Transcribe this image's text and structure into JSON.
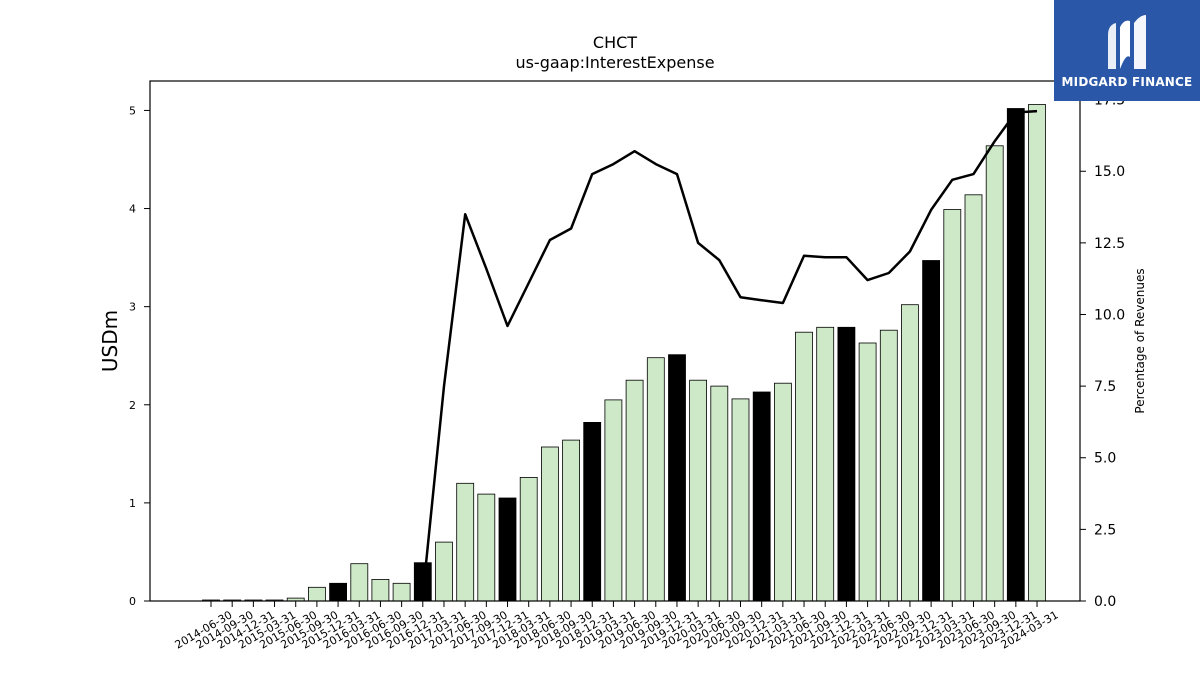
{
  "chart_data": {
    "type": "bar",
    "title": "CHCT",
    "subtitle": "us-gaap:InterestExpense",
    "ylabel": "USDm",
    "y2label": "Percentage of Revenues",
    "ylim": [
      0,
      5.3
    ],
    "y2lim": [
      0,
      18.15
    ],
    "yticks": [
      0,
      1,
      2,
      3,
      4,
      5
    ],
    "y2ticks": [
      "0.0",
      "2.5",
      "5.0",
      "7.5",
      "10.0",
      "12.5",
      "15.0",
      "17.5"
    ],
    "categories": [
      "2014-06-30",
      "2014-09-30",
      "2014-12-31",
      "2015-03-31",
      "2015-06-30",
      "2015-09-30",
      "2015-12-31",
      "2016-03-31",
      "2016-06-30",
      "2016-09-30",
      "2016-12-31",
      "2017-03-31",
      "2017-06-30",
      "2017-09-30",
      "2017-12-31",
      "2018-03-31",
      "2018-06-30",
      "2018-09-30",
      "2018-12-31",
      "2019-03-31",
      "2019-06-30",
      "2019-09-30",
      "2019-12-31",
      "2020-03-31",
      "2020-06-30",
      "2020-09-30",
      "2020-12-31",
      "2021-03-31",
      "2021-06-30",
      "2021-09-30",
      "2021-12-31",
      "2022-03-31",
      "2022-06-30",
      "2022-09-30",
      "2022-12-31",
      "2023-03-31",
      "2023-06-30",
      "2023-09-30",
      "2023-12-31",
      "2024-03-31"
    ],
    "series": [
      {
        "type": "bar",
        "values": [
          0.01,
          0.01,
          0.01,
          0.01,
          0.03,
          0.14,
          0.18,
          0.38,
          0.22,
          0.18,
          0.39,
          0.6,
          1.2,
          1.09,
          1.05,
          1.26,
          1.57,
          1.64,
          1.82,
          2.05,
          2.25,
          2.48,
          2.51,
          2.25,
          2.19,
          2.06,
          2.13,
          2.22,
          2.74,
          2.79,
          2.79,
          2.63,
          2.76,
          3.02,
          3.47,
          3.99,
          4.14,
          4.64,
          5.02,
          5.06
        ],
        "highlight": [
          false,
          false,
          false,
          false,
          false,
          false,
          true,
          false,
          false,
          false,
          true,
          false,
          false,
          false,
          true,
          false,
          false,
          false,
          true,
          false,
          false,
          false,
          true,
          false,
          false,
          false,
          true,
          false,
          false,
          false,
          true,
          false,
          false,
          false,
          true,
          false,
          false,
          false,
          true,
          false
        ]
      },
      {
        "type": "line",
        "axis": "right",
        "values": [
          null,
          null,
          null,
          null,
          null,
          null,
          null,
          null,
          null,
          null,
          0.2,
          7.5,
          13.5,
          11.6,
          9.6,
          11.1,
          12.6,
          13.0,
          14.9,
          15.25,
          15.7,
          15.25,
          14.9,
          12.5,
          11.9,
          10.6,
          10.5,
          10.4,
          12.05,
          12.0,
          12.0,
          11.2,
          11.45,
          12.2,
          13.65,
          14.7,
          14.9,
          16.05,
          17.05,
          17.1
        ]
      }
    ],
    "colors": {
      "bar": "#cde9c7",
      "bar_highlight": "#000000",
      "bar_edge": "#000000",
      "line": "#000000"
    }
  },
  "logo": {
    "text": "MIDGARD FINANCE",
    "background": "#2a57a8"
  }
}
